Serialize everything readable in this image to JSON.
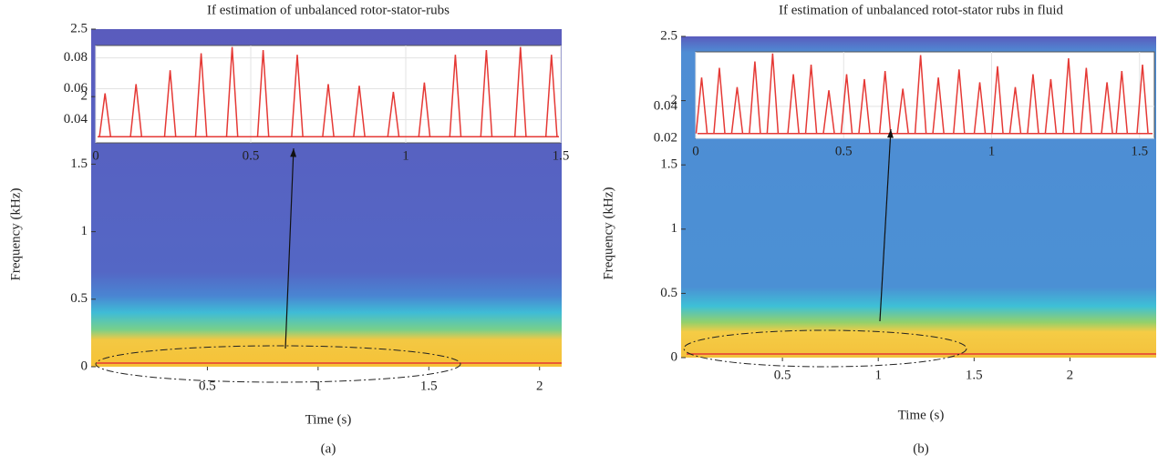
{
  "chart_data": [
    {
      "type": "spectrogram",
      "title": "If estimation of unbalanced rotor-stator-rubs",
      "x_label": "Time (s)",
      "y_label": "Frequency (kHz)",
      "panel_label": "(a)",
      "xlim": [
        0,
        2.1
      ],
      "xticks": [
        0.5,
        1,
        1.5,
        2
      ],
      "ylim": [
        0,
        2.5
      ],
      "yticks": [
        0,
        0.5,
        1,
        1.5,
        2,
        2.5
      ],
      "inset": {
        "type": "line",
        "color": "#e53935",
        "xlim": [
          0,
          1.5
        ],
        "xticks": [
          0,
          0.5,
          1,
          1.5
        ],
        "ylim": [
          0.025,
          0.088
        ],
        "yticks": [
          0.04,
          0.06,
          0.08
        ],
        "baseline": 0.029,
        "x": [
          0.03,
          0.13,
          0.24,
          0.34,
          0.44,
          0.54,
          0.65,
          0.75,
          0.85,
          0.96,
          1.06,
          1.16,
          1.26,
          1.37,
          1.47
        ],
        "values": [
          0.057,
          0.063,
          0.072,
          0.083,
          0.087,
          0.085,
          0.082,
          0.063,
          0.062,
          0.058,
          0.064,
          0.082,
          0.085,
          0.087,
          0.082
        ]
      }
    },
    {
      "type": "spectrogram",
      "title": "If estimation of unbalanced rotot-stator rubs in fluid",
      "x_label": "Time (s)",
      "y_label": "Frequency (kHz)",
      "panel_label": "(b)",
      "xlim": [
        0,
        2.45
      ],
      "xticks": [
        0.5,
        1,
        1.5,
        2
      ],
      "ylim": [
        0,
        2.5
      ],
      "yticks": [
        0,
        0.5,
        1,
        1.5,
        2,
        2.5
      ],
      "inset": {
        "type": "line",
        "color": "#e53935",
        "xlim": [
          0,
          1.55
        ],
        "xticks": [
          0,
          0.5,
          1,
          1.5
        ],
        "ylim": [
          0.02,
          0.074
        ],
        "yticks": [
          0.02,
          0.04
        ],
        "baseline": 0.023,
        "x": [
          0.02,
          0.08,
          0.14,
          0.2,
          0.26,
          0.33,
          0.39,
          0.45,
          0.51,
          0.57,
          0.64,
          0.7,
          0.76,
          0.82,
          0.89,
          0.96,
          1.02,
          1.08,
          1.14,
          1.2,
          1.26,
          1.32,
          1.39,
          1.44,
          1.51
        ],
        "values": [
          0.058,
          0.064,
          0.052,
          0.068,
          0.073,
          0.06,
          0.066,
          0.05,
          0.06,
          0.057,
          0.062,
          0.051,
          0.072,
          0.058,
          0.063,
          0.055,
          0.065,
          0.052,
          0.06,
          0.057,
          0.07,
          0.064,
          0.055,
          0.062,
          0.066
        ]
      }
    }
  ]
}
